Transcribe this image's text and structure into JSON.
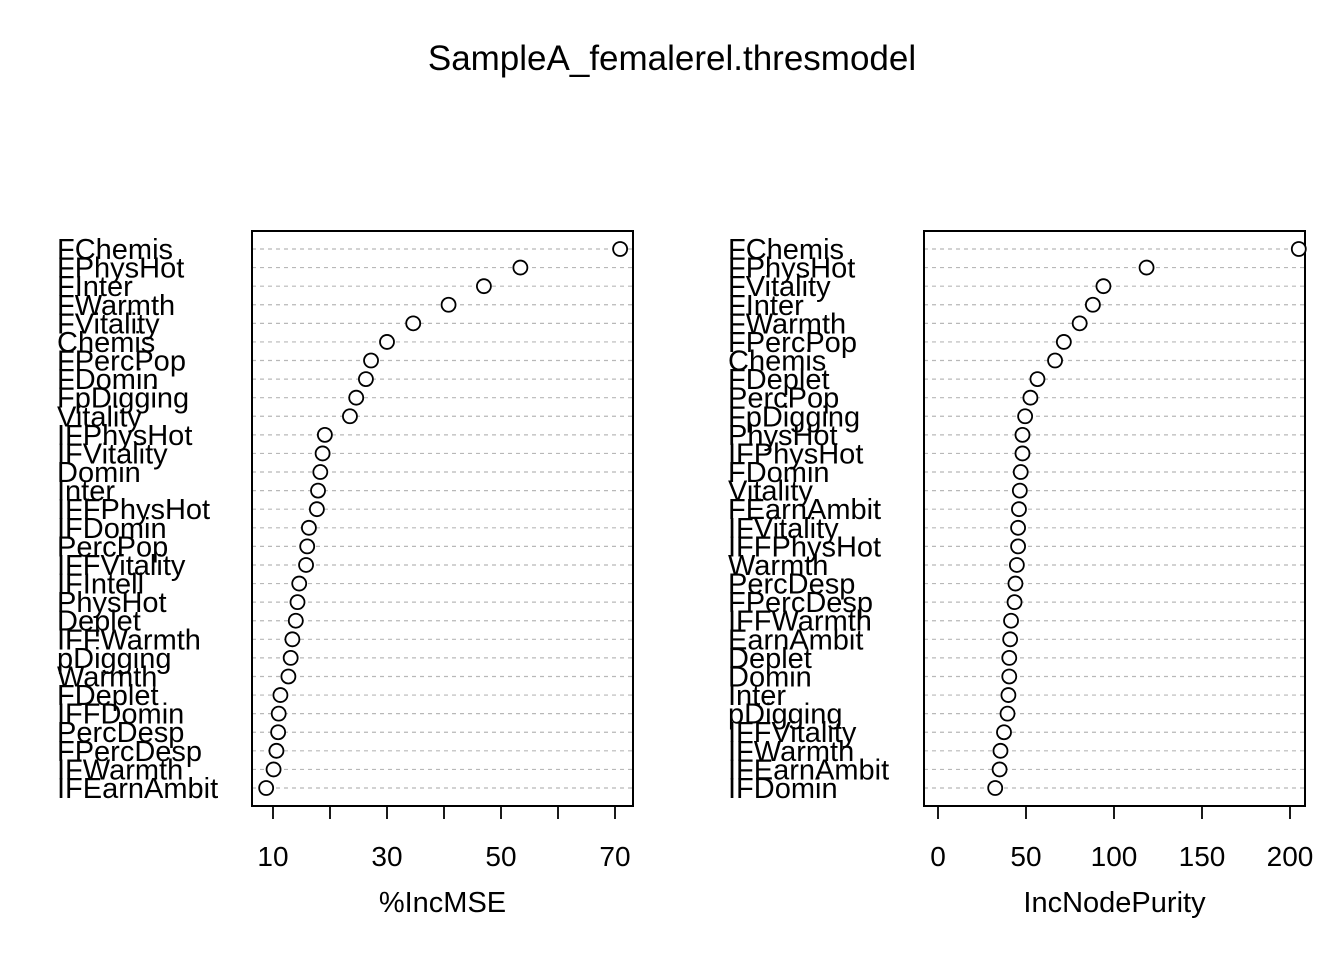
{
  "chart_data": {
    "title": "SampleA_femalerel.thresmodel",
    "charts": [
      {
        "type": "scatter",
        "xlabel": "%IncMSE",
        "xlim": [
          8.5,
          71
        ],
        "xticks": [
          10,
          30,
          50,
          70
        ],
        "minor_ticks": [
          10,
          20,
          30,
          40,
          50,
          60,
          70
        ],
        "points": [
          {
            "label": "FChemis",
            "value": 70.9
          },
          {
            "label": "FPhysHot",
            "value": 53.4
          },
          {
            "label": "FInter",
            "value": 47.0
          },
          {
            "label": "FWarmth",
            "value": 40.8
          },
          {
            "label": "FVitality",
            "value": 34.6
          },
          {
            "label": "Chemis",
            "value": 30.0
          },
          {
            "label": "FPercPop",
            "value": 27.2
          },
          {
            "label": "FDomin",
            "value": 26.3
          },
          {
            "label": "FpDigging",
            "value": 24.6
          },
          {
            "label": "Vitality",
            "value": 23.5
          },
          {
            "label": "IFPhysHot",
            "value": 19.1
          },
          {
            "label": "IFVitality",
            "value": 18.7
          },
          {
            "label": "Domin",
            "value": 18.3
          },
          {
            "label": "Inter",
            "value": 17.9
          },
          {
            "label": "IFFPhysHot",
            "value": 17.7
          },
          {
            "label": "IFDomin",
            "value": 16.3
          },
          {
            "label": "PercPop",
            "value": 16.0
          },
          {
            "label": "IFFVitality",
            "value": 15.8
          },
          {
            "label": "IFIntell",
            "value": 14.6
          },
          {
            "label": "PhysHot",
            "value": 14.3
          },
          {
            "label": "Deplet",
            "value": 14.0
          },
          {
            "label": "IFFWarmth",
            "value": 13.4
          },
          {
            "label": "pDigging",
            "value": 13.1
          },
          {
            "label": "Warmth",
            "value": 12.7
          },
          {
            "label": "FDeplet",
            "value": 11.3
          },
          {
            "label": "IFFDomin",
            "value": 11.0
          },
          {
            "label": "PercDesp",
            "value": 10.9
          },
          {
            "label": "FPercDesp",
            "value": 10.6
          },
          {
            "label": "IFWarmth",
            "value": 10.1
          },
          {
            "label": "IFEarnAmbit",
            "value": 8.8
          }
        ]
      },
      {
        "type": "scatter",
        "xlabel": "IncNodePurity",
        "xlim": [
          0,
          205
        ],
        "xticks": [
          0,
          50,
          100,
          150,
          200
        ],
        "minor_ticks": [
          0,
          50,
          100,
          150,
          200
        ],
        "points": [
          {
            "label": "FChemis",
            "value": 205.0
          },
          {
            "label": "FPhysHot",
            "value": 118.5
          },
          {
            "label": "FVitality",
            "value": 94.0
          },
          {
            "label": "FInter",
            "value": 88.0
          },
          {
            "label": "FWarmth",
            "value": 80.5
          },
          {
            "label": "FPercPop",
            "value": 71.5
          },
          {
            "label": "Chemis",
            "value": 66.5
          },
          {
            "label": "FDeplet",
            "value": 56.5
          },
          {
            "label": "PercPop",
            "value": 52.5
          },
          {
            "label": "FpDigging",
            "value": 49.5
          },
          {
            "label": "PhysHot",
            "value": 48.0
          },
          {
            "label": "IFPhysHot",
            "value": 48.0
          },
          {
            "label": "FDomin",
            "value": 47.0
          },
          {
            "label": "Vitality",
            "value": 46.5
          },
          {
            "label": "FEarnAmbit",
            "value": 46.0
          },
          {
            "label": "IFVitality",
            "value": 45.5
          },
          {
            "label": "IFFPhysHot",
            "value": 45.5
          },
          {
            "label": "Warmth",
            "value": 44.8
          },
          {
            "label": "PercDesp",
            "value": 44.0
          },
          {
            "label": "FPercDesp",
            "value": 43.5
          },
          {
            "label": "IFFWarmth",
            "value": 41.5
          },
          {
            "label": "EarnAmbit",
            "value": 41.0
          },
          {
            "label": "Deplet",
            "value": 40.5
          },
          {
            "label": "Domin",
            "value": 40.5
          },
          {
            "label": "Inter",
            "value": 40.0
          },
          {
            "label": "pDigging",
            "value": 39.5
          },
          {
            "label": "IFFVitality",
            "value": 37.5
          },
          {
            "label": "IFWarmth",
            "value": 35.5
          },
          {
            "label": "IFEarnAmbit",
            "value": 35.0
          },
          {
            "label": "IFDomin",
            "value": 32.5
          }
        ]
      }
    ]
  }
}
